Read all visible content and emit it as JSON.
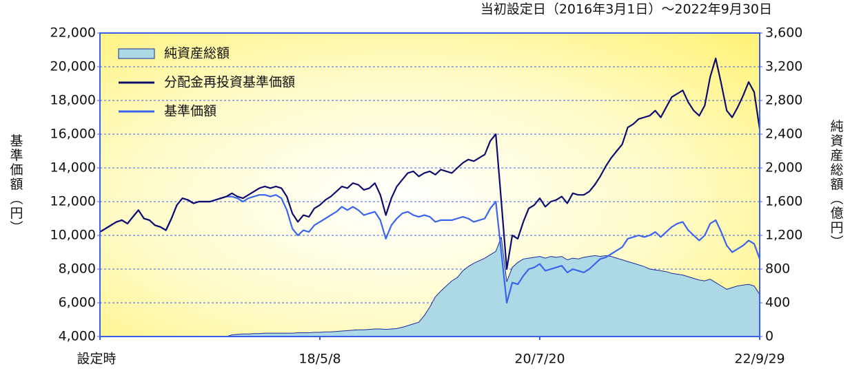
{
  "chart_data": {
    "type": "line",
    "subtitle": "当初設定日（2016年3月1日）～2022年9月30日",
    "y_label": "基準価額（円）",
    "y2_label": "純資産総額（億円）",
    "categories": [
      "設定時",
      null,
      null,
      null,
      null,
      null,
      null,
      null,
      null,
      null,
      null,
      null,
      null,
      null,
      null,
      null,
      null,
      null,
      null,
      null,
      null,
      null,
      null,
      null,
      null,
      null,
      null,
      null,
      null,
      null,
      null,
      null,
      null,
      null,
      null,
      null,
      null,
      null,
      null,
      null,
      "18/5/8",
      null,
      null,
      null,
      null,
      null,
      null,
      null,
      null,
      null,
      null,
      null,
      null,
      null,
      null,
      null,
      null,
      null,
      null,
      null,
      null,
      null,
      null,
      null,
      null,
      null,
      null,
      null,
      null,
      null,
      null,
      null,
      null,
      null,
      null,
      null,
      null,
      null,
      null,
      null,
      "20/7/20",
      null,
      null,
      null,
      null,
      null,
      null,
      null,
      null,
      null,
      null,
      null,
      null,
      null,
      null,
      null,
      null,
      null,
      null,
      null,
      null,
      null,
      null,
      null,
      null,
      null,
      null,
      null,
      null,
      null,
      null,
      null,
      null,
      null,
      null,
      null,
      null,
      null,
      null,
      null,
      "22/9/29"
    ],
    "series": [
      {
        "name": "純資産総額",
        "type": "area",
        "axis": "y2",
        "color": "#add8e6",
        "edge_color": "#1a2a9a",
        "values": [
          0,
          0,
          0,
          0,
          0,
          0,
          0,
          0,
          0,
          0,
          0,
          0,
          0,
          0,
          0,
          0,
          0,
          0,
          0,
          0,
          0,
          0,
          0,
          0,
          20,
          25,
          30,
          30,
          35,
          35,
          40,
          40,
          40,
          40,
          40,
          40,
          45,
          45,
          45,
          50,
          50,
          55,
          55,
          60,
          65,
          70,
          75,
          80,
          80,
          85,
          90,
          90,
          85,
          90,
          95,
          110,
          130,
          150,
          170,
          250,
          350,
          470,
          540,
          600,
          660,
          700,
          780,
          830,
          870,
          900,
          930,
          970,
          1010,
          1180,
          650,
          820,
          880,
          920,
          930,
          940,
          950,
          930,
          950,
          940,
          950,
          910,
          930,
          920,
          940,
          950,
          960,
          950,
          960,
          950,
          930,
          910,
          890,
          870,
          850,
          830,
          800,
          790,
          780,
          770,
          750,
          740,
          730,
          710,
          690,
          670,
          660,
          680,
          640,
          600,
          560,
          580,
          600,
          610,
          620,
          600,
          500
        ]
      },
      {
        "name": "分配金再投資基準価額",
        "type": "line",
        "color": "#0c0c6e",
        "values": [
          10200,
          10400,
          10600,
          10800,
          10900,
          10700,
          11100,
          11500,
          11000,
          10900,
          10600,
          10500,
          10300,
          11000,
          11800,
          12200,
          12100,
          11900,
          12000,
          12000,
          12000,
          12100,
          12200,
          12300,
          12500,
          12300,
          12200,
          12400,
          12600,
          12800,
          12900,
          12800,
          12900,
          12800,
          12300,
          11300,
          10800,
          11200,
          11100,
          11600,
          11800,
          12100,
          12300,
          12600,
          12900,
          12800,
          13100,
          13000,
          12700,
          12800,
          13100,
          12400,
          11200,
          12200,
          12900,
          13300,
          13700,
          13800,
          13500,
          13700,
          13800,
          13600,
          13900,
          13800,
          13700,
          14000,
          14300,
          14500,
          14400,
          14600,
          14800,
          15600,
          16000,
          12000,
          8000,
          10000,
          9800,
          10800,
          11600,
          11800,
          12200,
          11700,
          12000,
          12100,
          12300,
          11900,
          12500,
          12400,
          12400,
          12600,
          13000,
          13500,
          14100,
          14600,
          15000,
          15400,
          16400,
          16600,
          16900,
          17000,
          17100,
          17400,
          17000,
          17600,
          18200,
          18400,
          18600,
          17900,
          17400,
          17100,
          17700,
          19400,
          20500,
          19000,
          17400,
          17000,
          17600,
          18300,
          19100,
          18500,
          16300
        ]
      },
      {
        "name": "基準価額",
        "type": "line",
        "color": "#3a64ee",
        "values": [
          10200,
          10400,
          10600,
          10800,
          10900,
          10700,
          11100,
          11500,
          11000,
          10900,
          10600,
          10500,
          10300,
          11000,
          11800,
          12200,
          12100,
          11900,
          12000,
          12000,
          12000,
          12100,
          12200,
          12300,
          12300,
          12200,
          12000,
          12200,
          12300,
          12400,
          12400,
          12300,
          12400,
          12200,
          11500,
          10400,
          10000,
          10300,
          10200,
          10600,
          10800,
          11000,
          11200,
          11400,
          11700,
          11500,
          11700,
          11500,
          11200,
          11300,
          11400,
          10900,
          9800,
          10600,
          11000,
          11300,
          11400,
          11200,
          11100,
          11200,
          11100,
          10800,
          10900,
          10900,
          10900,
          11000,
          11100,
          11000,
          10800,
          10900,
          11000,
          11600,
          12000,
          9000,
          6000,
          7200,
          7100,
          7600,
          8000,
          8100,
          8300,
          7900,
          8000,
          8100,
          8200,
          7800,
          8000,
          7900,
          7800,
          8000,
          8300,
          8600,
          8700,
          8900,
          9100,
          9300,
          9800,
          9900,
          10000,
          9900,
          10000,
          10200,
          9900,
          10200,
          10500,
          10700,
          10800,
          10300,
          10000,
          9700,
          10000,
          10700,
          10900,
          10200,
          9400,
          9000,
          9200,
          9400,
          9700,
          9500,
          8600
        ]
      }
    ],
    "ylim": [
      4000,
      22000
    ],
    "yticks": [
      {
        "value": 4000,
        "label": "4,000"
      },
      {
        "value": 6000,
        "label": "6,000"
      },
      {
        "value": 8000,
        "label": "8,000"
      },
      {
        "value": 10000,
        "label": "10,000"
      },
      {
        "value": 12000,
        "label": "12,000"
      },
      {
        "value": 14000,
        "label": "14,000"
      },
      {
        "value": 16000,
        "label": "16,000"
      },
      {
        "value": 18000,
        "label": "18,000"
      },
      {
        "value": 20000,
        "label": "20,000"
      },
      {
        "value": 22000,
        "label": "22,000"
      }
    ],
    "y2lim": [
      0,
      3600
    ],
    "y2ticks": [
      0,
      400,
      800,
      {
        "value": 1200,
        "label": "1,200"
      },
      {
        "value": 1600,
        "label": "1,600"
      },
      {
        "value": 2000,
        "label": "2,000"
      },
      {
        "value": 2400,
        "label": "2,400"
      },
      {
        "value": 2800,
        "label": "2,800"
      },
      {
        "value": 3200,
        "label": "3,200"
      },
      {
        "value": 3600,
        "label": "3,600"
      }
    ],
    "grid": true
  }
}
